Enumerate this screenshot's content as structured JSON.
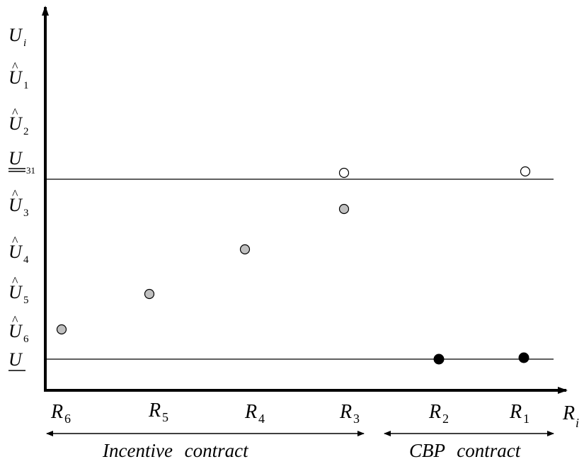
{
  "axes": {
    "y_label": {
      "base": "U",
      "sub": "i"
    },
    "x_label": {
      "base": "R",
      "sub": "i"
    }
  },
  "y_labels": [
    {
      "id": "u-i",
      "base": "U",
      "sub": "i",
      "hat": false
    },
    {
      "id": "u-hat-1",
      "base": "U",
      "sub": "1",
      "hat": true
    },
    {
      "id": "u-hat-2",
      "base": "U",
      "sub": "2",
      "hat": true
    },
    {
      "id": "u-31",
      "base": "U",
      "sub": "31",
      "hat": false,
      "underline": "double"
    },
    {
      "id": "u-hat-3",
      "base": "U",
      "sub": "3",
      "hat": true
    },
    {
      "id": "u-hat-4",
      "base": "U",
      "sub": "4",
      "hat": true
    },
    {
      "id": "u-hat-5",
      "base": "U",
      "sub": "5",
      "hat": true
    },
    {
      "id": "u-hat-6",
      "base": "U",
      "sub": "6",
      "hat": true
    },
    {
      "id": "u-lower",
      "base": "U",
      "sub": "",
      "hat": false,
      "underline": "single"
    }
  ],
  "x_labels": [
    {
      "id": "r6",
      "base": "R",
      "sub": "6"
    },
    {
      "id": "r5",
      "base": "R",
      "sub": "5"
    },
    {
      "id": "r4",
      "base": "R",
      "sub": "4"
    },
    {
      "id": "r3",
      "base": "R",
      "sub": "3"
    },
    {
      "id": "r2",
      "base": "R",
      "sub": "2"
    },
    {
      "id": "r1",
      "base": "R",
      "sub": "1"
    }
  ],
  "points": [
    {
      "id": "r6-point",
      "style": "gray"
    },
    {
      "id": "r5-point",
      "style": "gray"
    },
    {
      "id": "r4-point",
      "style": "gray"
    },
    {
      "id": "r3-point-gray",
      "style": "gray"
    },
    {
      "id": "r3-point-open",
      "style": "open"
    },
    {
      "id": "r2-point",
      "style": "filled"
    },
    {
      "id": "r1-point-filled",
      "style": "filled"
    },
    {
      "id": "r1-point-open",
      "style": "open"
    }
  ],
  "ranges": {
    "incentive": "Incentive contract",
    "cbp": "CBP contract"
  },
  "colors": {
    "line": "#000000",
    "gray_point": "#c0c0c0",
    "filled_point": "#000000",
    "open_point": "#ffffff"
  }
}
